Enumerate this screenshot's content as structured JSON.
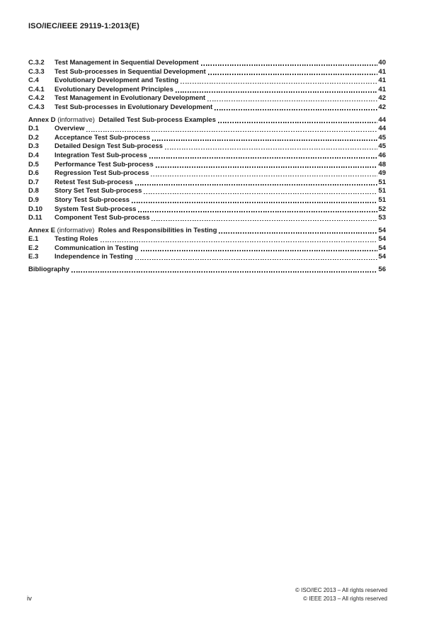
{
  "header": {
    "doc_id": "ISO/IEC/IEEE 29119-1:2013(E)"
  },
  "toc": {
    "sections": [
      {
        "name": "annex-c-continued",
        "rows": [
          {
            "type": "entry",
            "num": "C.3.2",
            "title": "Test Management in Sequential Development",
            "page": "40"
          },
          {
            "type": "entry",
            "num": "C.3.3",
            "title": "Test Sub-processes in Sequential Development",
            "page": "41"
          },
          {
            "type": "entry",
            "num": "C.4",
            "title": "Evolutionary Development and Testing",
            "page": "41"
          },
          {
            "type": "entry",
            "num": "C.4.1",
            "title": "Evolutionary Development Principles",
            "page": "41"
          },
          {
            "type": "entry",
            "num": "C.4.2",
            "title": "Test Management in Evolutionary Development",
            "page": "42"
          },
          {
            "type": "entry",
            "num": "C.4.3",
            "title": "Test Sub-processes in Evolutionary Development",
            "page": "42"
          }
        ]
      },
      {
        "name": "annex-d",
        "rows": [
          {
            "type": "annex",
            "num": "Annex D",
            "qualifier": "(informative)",
            "title": "Detailed Test Sub-process Examples",
            "page": "44"
          },
          {
            "type": "entry",
            "num": "D.1",
            "title": "Overview",
            "page": "44"
          },
          {
            "type": "entry",
            "num": "D.2",
            "title": "Acceptance Test Sub-process",
            "page": "45"
          },
          {
            "type": "entry",
            "num": "D.3",
            "title": "Detailed Design Test Sub-process",
            "page": "45"
          },
          {
            "type": "entry",
            "num": "D.4",
            "title": "Integration Test Sub-process",
            "page": "46"
          },
          {
            "type": "entry",
            "num": "D.5",
            "title": "Performance Test Sub-process",
            "page": "48"
          },
          {
            "type": "entry",
            "num": "D.6",
            "title": "Regression Test Sub-process",
            "page": "49"
          },
          {
            "type": "entry",
            "num": "D.7",
            "title": "Retest Test Sub-process",
            "page": "51"
          },
          {
            "type": "entry",
            "num": "D.8",
            "title": "Story Set Test Sub-process",
            "page": "51"
          },
          {
            "type": "entry",
            "num": "D.9",
            "title": "Story Test Sub-process",
            "page": "51"
          },
          {
            "type": "entry",
            "num": "D.10",
            "title": "System Test Sub-process",
            "page": "52"
          },
          {
            "type": "entry",
            "num": "D.11",
            "title": "Component Test Sub-process",
            "page": "53"
          }
        ]
      },
      {
        "name": "annex-e",
        "rows": [
          {
            "type": "annex",
            "num": "Annex E",
            "qualifier": "(informative)",
            "title": "Roles and Responsibilities in Testing",
            "page": "54"
          },
          {
            "type": "entry",
            "num": "E.1",
            "title": "Testing Roles",
            "page": "54"
          },
          {
            "type": "entry",
            "num": "E.2",
            "title": "Communication in Testing",
            "page": "54"
          },
          {
            "type": "entry",
            "num": "E.3",
            "title": "Independence in Testing",
            "page": "54"
          }
        ]
      },
      {
        "name": "bibliography",
        "rows": [
          {
            "type": "plain",
            "title": "Bibliography",
            "page": "56"
          }
        ]
      }
    ]
  },
  "footer": {
    "page_number": "iv",
    "copyright_line1": "© ISO/IEC 2013 – All rights reserved",
    "copyright_line2": "© IEEE 2013 – All rights reserved"
  }
}
